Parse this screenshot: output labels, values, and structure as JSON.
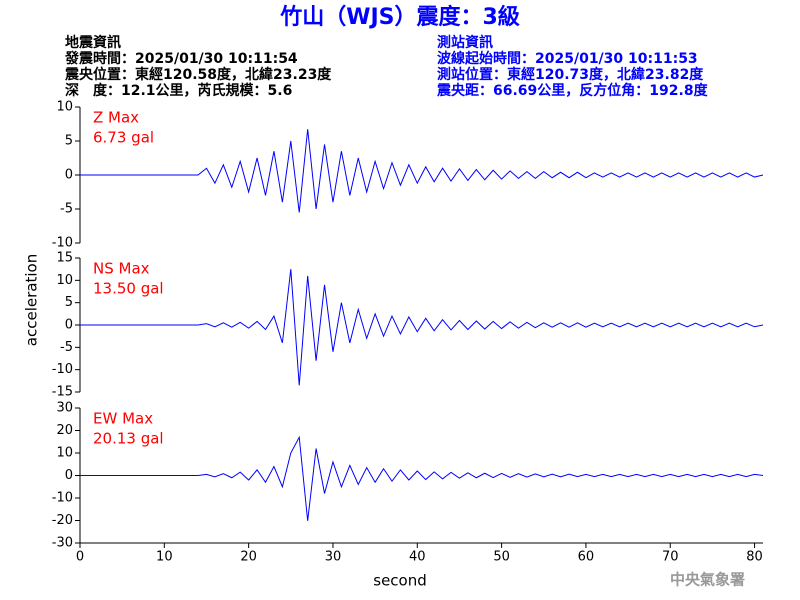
{
  "title": "竹山（WJS）震度：3級",
  "header": {
    "left": [
      "地震資訊",
      "發震時間：2025/01/30 10:11:54",
      "震央位置：東經120.58度，北緯23.23度",
      "深　度：12.1公里，芮氏規模：5.6"
    ],
    "right": [
      "測站資訊",
      "波線起始時間：2025/01/30 10:11:53",
      "測站位置：東經120.73度，北緯23.82度",
      "震央距：66.69公里，反方位角：192.8度"
    ]
  },
  "footer": "中央氣象署",
  "chart_data": [
    {
      "type": "line",
      "annotations": [
        "Z Max",
        "6.73 gal"
      ],
      "color": "#0000ff",
      "annotation_color": "#ff0000",
      "xlim": [
        0,
        81
      ],
      "ylim": [
        -10,
        10
      ],
      "yticks": [
        -10,
        -5,
        0,
        5,
        10
      ],
      "x": [
        0,
        14,
        15,
        16,
        17,
        18,
        19,
        20,
        21,
        22,
        23,
        24,
        25,
        26,
        27,
        28,
        29,
        30,
        31,
        32,
        33,
        34,
        35,
        36,
        37,
        38,
        39,
        40,
        41,
        42,
        43,
        44,
        45,
        46,
        47,
        48,
        49,
        50,
        51,
        52,
        53,
        54,
        55,
        56,
        57,
        58,
        59,
        60,
        61,
        62,
        63,
        64,
        65,
        66,
        67,
        68,
        69,
        70,
        71,
        72,
        73,
        74,
        75,
        76,
        77,
        78,
        79,
        80,
        81
      ],
      "values": [
        0,
        0,
        1,
        -1.2,
        1.5,
        -1.8,
        2,
        -2.5,
        2.5,
        -3,
        3.5,
        -4,
        5,
        -5.5,
        6.73,
        -5,
        4.5,
        -4,
        3.5,
        -3,
        2.5,
        -2.5,
        2,
        -2,
        1.8,
        -1.5,
        1.5,
        -1.2,
        1.2,
        -1,
        1,
        -0.9,
        0.9,
        -0.8,
        0.8,
        -0.7,
        0.7,
        -0.6,
        0.6,
        -0.5,
        0.5,
        -0.5,
        0.5,
        -0.4,
        0.4,
        -0.4,
        0.4,
        -0.4,
        0.3,
        -0.3,
        0.3,
        -0.3,
        0.3,
        -0.3,
        0.3,
        -0.3,
        0.3,
        -0.3,
        0.3,
        -0.3,
        0.3,
        -0.3,
        0.3,
        -0.3,
        0.3,
        -0.3,
        0.3,
        -0.3,
        0
      ]
    },
    {
      "type": "line",
      "annotations": [
        "NS Max",
        "13.50 gal"
      ],
      "color": "#0000ff",
      "annotation_color": "#ff0000",
      "ylabel": "acceleration",
      "xlim": [
        0,
        81
      ],
      "ylim": [
        -15,
        15
      ],
      "yticks": [
        -15,
        -10,
        -5,
        0,
        5,
        10,
        15
      ],
      "x": [
        0,
        14,
        15,
        16,
        17,
        18,
        19,
        20,
        21,
        22,
        23,
        24,
        25,
        26,
        27,
        28,
        29,
        30,
        31,
        32,
        33,
        34,
        35,
        36,
        37,
        38,
        39,
        40,
        41,
        42,
        43,
        44,
        45,
        46,
        47,
        48,
        49,
        50,
        51,
        52,
        53,
        54,
        55,
        56,
        57,
        58,
        59,
        60,
        61,
        62,
        63,
        64,
        65,
        66,
        67,
        68,
        69,
        70,
        71,
        72,
        73,
        74,
        75,
        76,
        77,
        78,
        79,
        80,
        81
      ],
      "values": [
        0,
        0,
        0.3,
        -0.4,
        0.5,
        -0.5,
        0.6,
        -0.7,
        0.8,
        -1,
        2,
        -4,
        12.5,
        -13.5,
        11,
        -8,
        9,
        -6,
        5,
        -4,
        3.5,
        -3,
        2.5,
        -2.5,
        2,
        -2,
        1.8,
        -1.5,
        1.5,
        -1.3,
        1.2,
        -1.1,
        1,
        -1,
        0.9,
        -0.9,
        0.8,
        -0.8,
        0.7,
        -0.7,
        0.6,
        -0.6,
        0.5,
        -0.5,
        0.5,
        -0.5,
        0.5,
        -0.5,
        0.4,
        -0.4,
        0.4,
        -0.4,
        0.4,
        -0.4,
        0.4,
        -0.4,
        0.4,
        -0.4,
        0.4,
        -0.4,
        0.4,
        -0.4,
        0.4,
        -0.4,
        0.4,
        -0.4,
        0.4,
        -0.4,
        0
      ]
    },
    {
      "type": "line",
      "annotations": [
        "EW Max",
        "20.13 gal"
      ],
      "color": "#0000ff",
      "annotation_color": "#ff0000",
      "xlabel": "second",
      "xlim": [
        0,
        81
      ],
      "ylim": [
        -30,
        30
      ],
      "yticks": [
        -30,
        -20,
        -10,
        0,
        10,
        20,
        30
      ],
      "xticks": [
        0,
        10,
        20,
        30,
        40,
        50,
        60,
        70,
        80
      ],
      "x": [
        0,
        14,
        15,
        16,
        17,
        18,
        19,
        20,
        21,
        22,
        23,
        24,
        25,
        26,
        27,
        28,
        29,
        30,
        31,
        32,
        33,
        34,
        35,
        36,
        37,
        38,
        39,
        40,
        41,
        42,
        43,
        44,
        45,
        46,
        47,
        48,
        49,
        50,
        51,
        52,
        53,
        54,
        55,
        56,
        57,
        58,
        59,
        60,
        61,
        62,
        63,
        64,
        65,
        66,
        67,
        68,
        69,
        70,
        71,
        72,
        73,
        74,
        75,
        76,
        77,
        78,
        79,
        80,
        81
      ],
      "values": [
        0,
        0,
        0.5,
        -0.6,
        0.8,
        -1,
        1.5,
        -2,
        2.5,
        -3,
        4,
        -5,
        10,
        17,
        -20.13,
        12,
        -8,
        6,
        -5,
        4.5,
        -4,
        3.5,
        -3,
        3,
        -2.5,
        2.5,
        -2,
        2,
        -1.8,
        1.6,
        -1.5,
        1.4,
        -1.2,
        1.2,
        -1,
        1,
        -0.9,
        0.9,
        -0.8,
        0.8,
        -0.7,
        0.7,
        -0.6,
        0.6,
        -0.6,
        0.6,
        -0.5,
        0.5,
        -0.5,
        0.5,
        -0.5,
        0.5,
        -0.5,
        0.5,
        -0.5,
        0.5,
        -0.5,
        0.5,
        -0.5,
        0.5,
        -0.5,
        0.5,
        -0.5,
        0.5,
        -0.5,
        0.5,
        -0.5,
        0.5,
        0
      ]
    }
  ]
}
